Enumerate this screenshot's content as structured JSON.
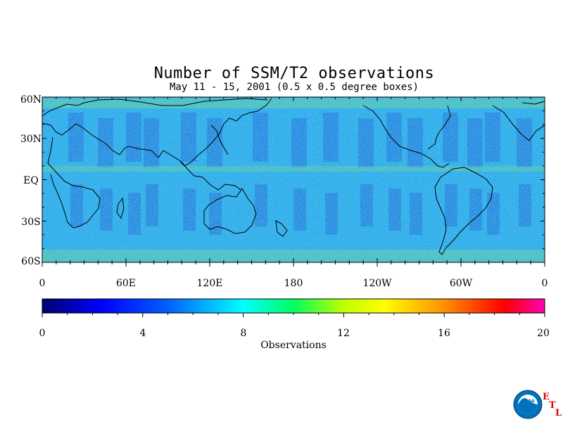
{
  "title": "Number of SSM/T2 observations",
  "subtitle": "May 11 - 15, 2001 (0.5 x 0.5 degree boxes)",
  "map": {
    "lat_labels": [
      "60N",
      "30N",
      "EQ",
      "30S",
      "60S"
    ],
    "lon_labels": [
      "0",
      "60E",
      "120E",
      "180",
      "120W",
      "60W",
      "0"
    ]
  },
  "colorbar": {
    "label": "Observations",
    "ticks": [
      "0",
      "4",
      "8",
      "12",
      "16",
      "20"
    ],
    "min": 0,
    "max": 20,
    "colors": [
      "#000080",
      "#0000ff",
      "#0080ff",
      "#00ffff",
      "#00ff00",
      "#ffff00",
      "#ff8000",
      "#ff0000",
      "#ff00aa"
    ]
  },
  "logo": {
    "text": "NOAA",
    "etl_letters": [
      "E",
      "T",
      "L"
    ],
    "colors": {
      "outer": "#0072bc",
      "etl": "#e00000"
    }
  }
}
